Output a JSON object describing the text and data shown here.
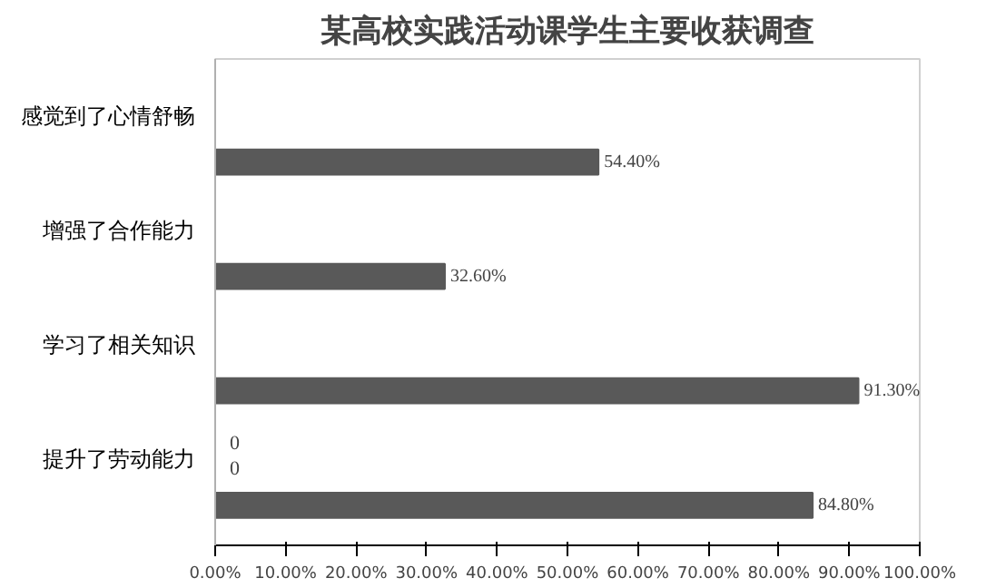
{
  "chart_data": {
    "type": "bar",
    "orientation": "horizontal",
    "title": "某高校实践活动课学生主要收获调查",
    "categories": [
      "感觉到了心情舒畅",
      "增强了合作能力",
      "学习了相关知识",
      "提升了劳动能力"
    ],
    "values": [
      54.4,
      32.6,
      91.3,
      84.8
    ],
    "value_labels": [
      "54.40%",
      "32.60%",
      "91.30%",
      "84.80%"
    ],
    "color": "#595959",
    "xlim": [
      0,
      100
    ],
    "xticks": [
      {
        "value": 0,
        "label": "0.00%"
      },
      {
        "value": 10,
        "label": "10.00%"
      },
      {
        "value": 20,
        "label": "20.00%"
      },
      {
        "value": 30,
        "label": "30.00%"
      },
      {
        "value": 40,
        "label": "40.00%"
      },
      {
        "value": 50,
        "label": "50.00%"
      },
      {
        "value": 60,
        "label": "60.00%"
      },
      {
        "value": 70,
        "label": "70.00%"
      },
      {
        "value": 80,
        "label": "80.00%"
      },
      {
        "value": 90,
        "label": "90.00%"
      },
      {
        "value": 100,
        "label": "100.00%"
      }
    ],
    "annotations": [
      {
        "text": "0",
        "x": 0,
        "y": "提升了劳动能力"
      },
      {
        "text": "0",
        "x": 0,
        "y": "提升了劳动能力"
      }
    ],
    "grid": false
  }
}
